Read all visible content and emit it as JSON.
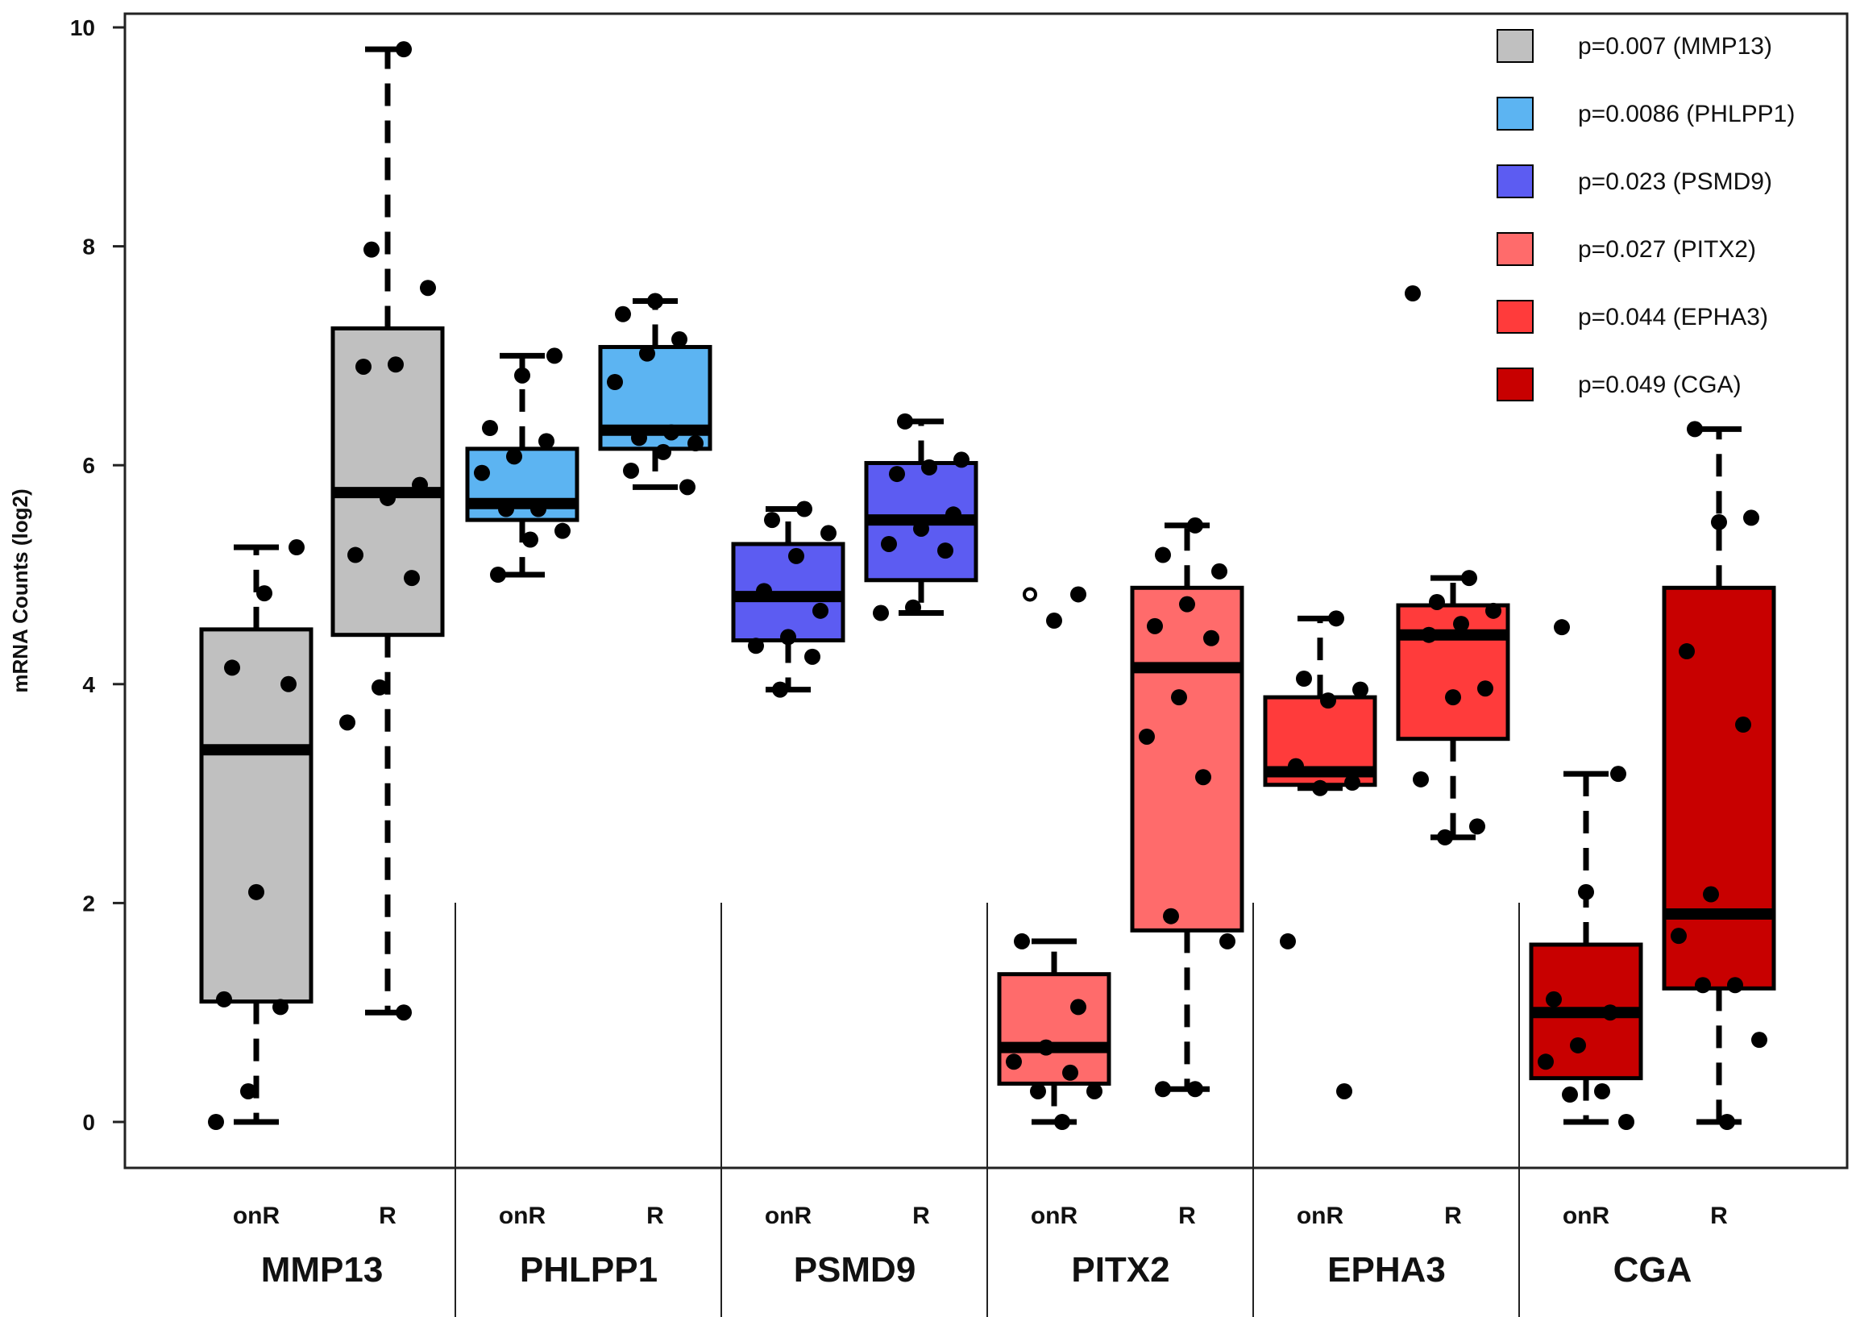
{
  "chart_data": {
    "type": "box",
    "title": "",
    "xlabel": "",
    "ylabel": "mRNA Counts (log2)",
    "ylim": [
      0,
      10
    ],
    "yticks": [
      "0",
      "2",
      "4",
      "6",
      "8",
      "10"
    ],
    "legend_position": "top-right",
    "groups": [
      {
        "gene": "MMP13",
        "color": "#c0c0c0",
        "legend": "p=0.007 (MMP13)",
        "boxes": [
          {
            "label": "onR",
            "whisker_low": 0,
            "q1": 1.1,
            "median": 3.4,
            "q3": 4.5,
            "whisker_high": 5.25,
            "points": [
              0,
              0.28,
              1.05,
              1.12,
              2.1,
              4.0,
              4.15,
              4.83,
              5.25
            ]
          },
          {
            "label": "R",
            "whisker_low": 1.0,
            "q1": 4.45,
            "median": 5.75,
            "q3": 7.25,
            "whisker_high": 9.8,
            "points": [
              1.0,
              3.65,
              3.97,
              4.97,
              5.18,
              5.7,
              5.82,
              6.9,
              6.92,
              7.62,
              7.97,
              9.8
            ]
          }
        ]
      },
      {
        "gene": "PHLPP1",
        "color": "#5cb4f2",
        "legend": "p=0.0086 (PHLPP1)",
        "boxes": [
          {
            "label": "onR",
            "whisker_low": 5.0,
            "q1": 5.5,
            "median": 5.65,
            "q3": 6.15,
            "whisker_high": 7.0,
            "points": [
              5.0,
              5.32,
              5.4,
              5.6,
              5.6,
              5.93,
              6.08,
              6.22,
              6.34,
              6.82,
              7.0
            ]
          },
          {
            "label": "R",
            "whisker_low": 5.8,
            "q1": 6.15,
            "median": 6.32,
            "q3": 7.08,
            "whisker_high": 7.5,
            "points": [
              5.8,
              5.95,
              6.12,
              6.2,
              6.25,
              6.3,
              6.76,
              7.02,
              7.15,
              7.38,
              7.5
            ]
          }
        ]
      },
      {
        "gene": "PSMD9",
        "color": "#5c5cf2",
        "legend": "p=0.023 (PSMD9)",
        "boxes": [
          {
            "label": "onR",
            "whisker_low": 3.95,
            "q1": 4.4,
            "median": 4.8,
            "q3": 5.28,
            "whisker_high": 5.6,
            "points": [
              3.95,
              4.25,
              4.35,
              4.43,
              4.67,
              4.85,
              5.17,
              5.38,
              5.5,
              5.6
            ]
          },
          {
            "label": "R",
            "whisker_low": 4.65,
            "q1": 4.95,
            "median": 5.5,
            "q3": 6.02,
            "whisker_high": 6.4,
            "points": [
              4.65,
              4.7,
              5.22,
              5.28,
              5.42,
              5.55,
              5.92,
              5.98,
              6.05,
              6.4
            ]
          }
        ]
      },
      {
        "gene": "PITX2",
        "color": "#ff6b6b",
        "legend": "p=0.027 (PITX2)",
        "boxes": [
          {
            "label": "onR",
            "whisker_low": 0,
            "q1": 0.35,
            "median": 0.68,
            "q3": 1.35,
            "whisker_high": 1.65,
            "points": [
              0,
              0.28,
              0.28,
              0.45,
              0.55,
              0.68,
              1.05,
              1.65,
              4.58,
              4.82
            ],
            "outliers": [
              4.82
            ]
          },
          {
            "label": "R",
            "whisker_low": 0.3,
            "q1": 1.75,
            "median": 4.15,
            "q3": 4.88,
            "whisker_high": 5.45,
            "points": [
              0.3,
              0.3,
              1.65,
              1.88,
              3.15,
              3.52,
              3.88,
              4.42,
              4.53,
              4.73,
              5.03,
              5.18,
              5.45
            ]
          }
        ]
      },
      {
        "gene": "EPHA3",
        "color": "#ff3b3b",
        "legend": "p=0.044 (EPHA3)",
        "boxes": [
          {
            "label": "onR",
            "whisker_low": 3.05,
            "q1": 3.08,
            "median": 3.2,
            "q3": 3.88,
            "whisker_high": 4.6,
            "points": [
              0.28,
              1.65,
              3.05,
              3.1,
              3.25,
              3.85,
              3.95,
              4.05,
              4.6
            ]
          },
          {
            "label": "R",
            "whisker_low": 2.6,
            "q1": 3.5,
            "median": 4.45,
            "q3": 4.72,
            "whisker_high": 4.97,
            "points": [
              2.6,
              2.7,
              3.13,
              3.88,
              3.96,
              4.45,
              4.55,
              4.67,
              4.75,
              4.97,
              7.57
            ]
          }
        ]
      },
      {
        "gene": "CGA",
        "color": "#c80000",
        "legend": "p=0.049 (CGA)",
        "boxes": [
          {
            "label": "onR",
            "whisker_low": 0,
            "q1": 0.4,
            "median": 1.0,
            "q3": 1.62,
            "whisker_high": 3.18,
            "points": [
              0,
              0.25,
              0.28,
              0.55,
              0.7,
              1.0,
              1.12,
              2.1,
              3.18,
              4.52
            ]
          },
          {
            "label": "R",
            "whisker_low": 0,
            "q1": 1.22,
            "median": 1.9,
            "q3": 4.88,
            "whisker_high": 6.33,
            "points": [
              0,
              0.75,
              1.25,
              1.25,
              1.7,
              2.08,
              3.63,
              4.3,
              5.48,
              5.52,
              6.33
            ]
          }
        ]
      }
    ]
  }
}
